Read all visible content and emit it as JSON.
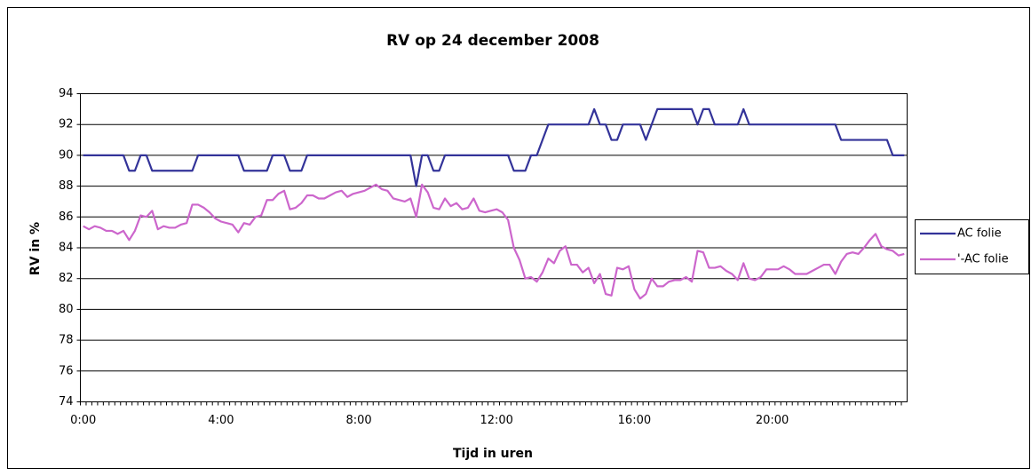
{
  "chart_data": {
    "type": "line",
    "title": "RV op 24 december 2008",
    "xlabel": "Tijd in uren",
    "ylabel": "RV in %",
    "categories": [
      "0:00",
      null,
      null,
      null,
      null,
      null,
      null,
      null,
      null,
      null,
      null,
      null,
      null,
      null,
      null,
      null,
      null,
      null,
      null,
      null,
      null,
      null,
      null,
      null,
      "4:00",
      null,
      null,
      null,
      null,
      null,
      null,
      null,
      null,
      null,
      null,
      null,
      null,
      null,
      null,
      null,
      null,
      null,
      null,
      null,
      null,
      null,
      null,
      null,
      "8:00",
      null,
      null,
      null,
      null,
      null,
      null,
      null,
      null,
      null,
      null,
      null,
      null,
      null,
      null,
      null,
      null,
      null,
      null,
      null,
      null,
      null,
      null,
      null,
      "12:00",
      null,
      null,
      null,
      null,
      null,
      null,
      null,
      null,
      null,
      null,
      null,
      null,
      null,
      null,
      null,
      null,
      null,
      null,
      null,
      null,
      null,
      null,
      null,
      "16:00",
      null,
      null,
      null,
      null,
      null,
      null,
      null,
      null,
      null,
      null,
      null,
      null,
      null,
      null,
      null,
      null,
      null,
      null,
      null,
      null,
      null,
      null,
      null,
      "20:00",
      null,
      null,
      null,
      null,
      null,
      null,
      null,
      null,
      null,
      null,
      null,
      null,
      null,
      null,
      null,
      null,
      null,
      null,
      null,
      null,
      null,
      null,
      null
    ],
    "series": [
      {
        "name": "AC folie",
        "color": "#333399",
        "values": [
          90,
          90,
          90,
          90,
          90,
          90,
          90,
          90,
          89,
          89,
          90,
          90,
          89,
          89,
          89,
          89,
          89,
          89,
          89,
          89,
          90,
          90,
          90,
          90,
          90,
          90,
          90,
          90,
          89,
          89,
          89,
          89,
          89,
          90,
          90,
          90,
          89,
          89,
          89,
          90,
          90,
          90,
          90,
          90,
          90,
          90,
          90,
          90,
          90,
          90,
          90,
          90,
          90,
          90,
          90,
          90,
          90,
          90,
          88,
          90,
          90,
          89,
          89,
          90,
          90,
          90,
          90,
          90,
          90,
          90,
          90,
          90,
          90,
          90,
          90,
          89,
          89,
          89,
          90,
          90,
          91,
          92,
          92,
          92,
          92,
          92,
          92,
          92,
          92,
          93,
          92,
          92,
          91,
          91,
          92,
          92,
          92,
          92,
          91,
          92,
          93,
          93,
          93,
          93,
          93,
          93,
          93,
          92,
          93,
          93,
          92,
          92,
          92,
          92,
          92,
          93,
          92,
          92,
          92,
          92,
          92,
          92,
          92,
          92,
          92,
          92,
          92,
          92,
          92,
          92,
          92,
          92,
          91,
          91,
          91,
          91,
          91,
          91,
          91,
          91,
          91,
          90,
          90,
          90
        ]
      },
      {
        "name": "'-AC folie",
        "color": "#cc66cc",
        "values": [
          85.4,
          85.2,
          85.4,
          85.3,
          85.1,
          85.1,
          84.9,
          85.1,
          84.5,
          85.1,
          86.1,
          86.0,
          86.4,
          85.2,
          85.4,
          85.3,
          85.3,
          85.5,
          85.6,
          86.8,
          86.8,
          86.6,
          86.3,
          85.9,
          85.7,
          85.6,
          85.5,
          85.0,
          85.6,
          85.5,
          86.0,
          86.1,
          87.1,
          87.1,
          87.5,
          87.7,
          86.5,
          86.6,
          86.9,
          87.4,
          87.4,
          87.2,
          87.2,
          87.4,
          87.6,
          87.7,
          87.3,
          87.5,
          87.6,
          87.7,
          87.9,
          88.1,
          87.8,
          87.7,
          87.2,
          87.1,
          87.0,
          87.2,
          86.0,
          88.1,
          87.6,
          86.6,
          86.5,
          87.2,
          86.7,
          86.9,
          86.5,
          86.6,
          87.2,
          86.4,
          86.3,
          86.4,
          86.5,
          86.3,
          85.8,
          84.0,
          83.2,
          82.0,
          82.1,
          81.8,
          82.4,
          83.3,
          83.0,
          83.8,
          84.1,
          82.9,
          82.9,
          82.4,
          82.7,
          81.7,
          82.3,
          81.0,
          80.9,
          82.7,
          82.6,
          82.8,
          81.3,
          80.7,
          81.0,
          82.0,
          81.5,
          81.5,
          81.8,
          81.9,
          81.9,
          82.1,
          81.8,
          83.8,
          83.7,
          82.7,
          82.7,
          82.8,
          82.5,
          82.3,
          81.9,
          83.0,
          82.0,
          81.9,
          82.1,
          82.6,
          82.6,
          82.6,
          82.8,
          82.6,
          82.3,
          82.3,
          82.3,
          82.5,
          82.7,
          82.9,
          82.9,
          82.3,
          83.1,
          83.6,
          83.7,
          83.6,
          84.0,
          84.5,
          84.9,
          84.1,
          83.9,
          83.8,
          83.5,
          83.6
        ]
      }
    ],
    "ylim": [
      74,
      94
    ],
    "yticks": [
      74,
      76,
      78,
      80,
      82,
      84,
      86,
      88,
      90,
      92,
      94
    ],
    "grid": true,
    "legend": "right"
  }
}
